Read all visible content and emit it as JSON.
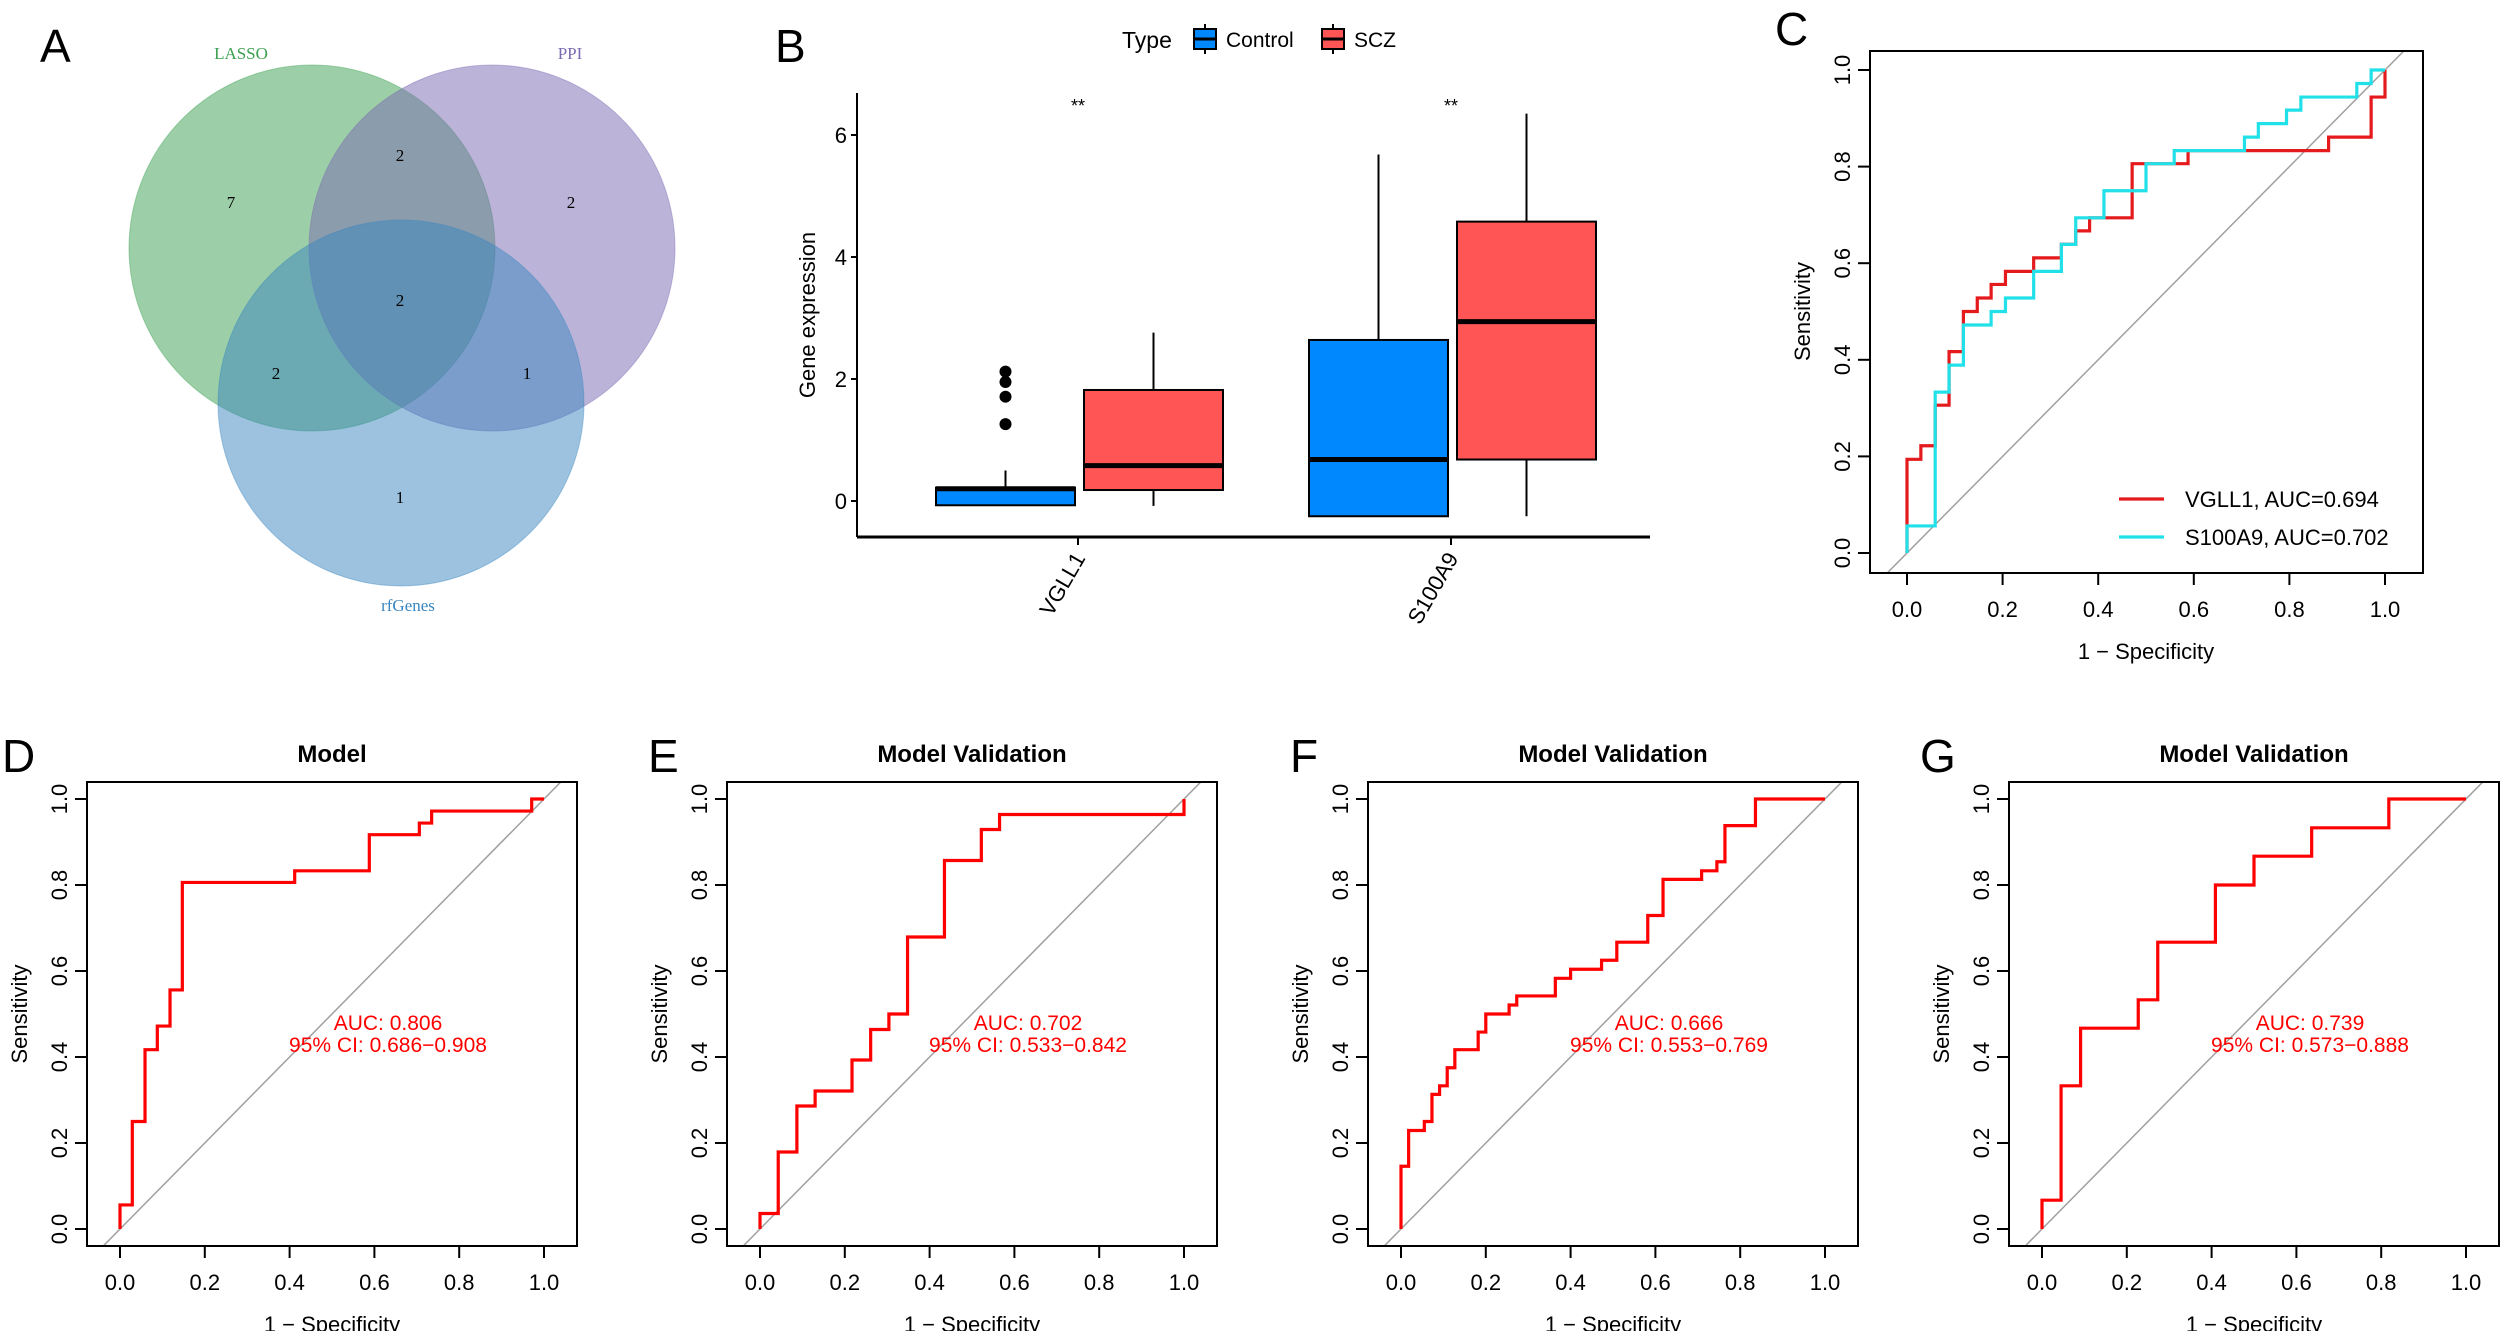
{
  "chart_data": [
    {
      "panel": "A",
      "type": "venn",
      "sets": [
        {
          "name": "LASSO",
          "color": "#3aa04f"
        },
        {
          "name": "PPI",
          "color": "#7a6ab2"
        },
        {
          "name": "rfGenes",
          "color": "#3a86c0"
        }
      ],
      "regions": {
        "LASSO_only": "7",
        "PPI_only": "2",
        "rfGenes_only": "1",
        "LASSO_PPI": "2",
        "LASSO_rfGenes": "2",
        "PPI_rfGenes": "1",
        "all": "2"
      }
    },
    {
      "panel": "B",
      "type": "box",
      "legend_title": "Type",
      "legend_position": "top",
      "groups": [
        {
          "name": "Control",
          "color": "#0088ff"
        },
        {
          "name": "SCZ",
          "color": "#ff5555"
        }
      ],
      "categories": [
        "VGLL1",
        "S100A9"
      ],
      "ylabel": "Gene expression",
      "yticks": [
        "0",
        "2",
        "4",
        "6"
      ],
      "significance": [
        "**",
        "**"
      ],
      "boxes": [
        {
          "category": "VGLL1",
          "group": "Control",
          "min": -0.07,
          "q1": -0.07,
          "median": 0.2,
          "q3": 0.22,
          "max": 0.5,
          "outliers": [
            1.26,
            1.71,
            1.95,
            2.12
          ]
        },
        {
          "category": "VGLL1",
          "group": "SCZ",
          "min": -0.08,
          "q1": 0.18,
          "median": 0.58,
          "q3": 1.82,
          "max": 2.76,
          "outliers": []
        },
        {
          "category": "S100A9",
          "group": "Control",
          "min": -0.25,
          "q1": -0.25,
          "median": 0.68,
          "q3": 2.64,
          "max": 5.68,
          "outliers": []
        },
        {
          "category": "S100A9",
          "group": "SCZ",
          "min": -0.25,
          "q1": 0.68,
          "median": 2.94,
          "q3": 4.58,
          "max": 6.35,
          "outliers": []
        }
      ]
    },
    {
      "panel": "C",
      "type": "line",
      "title": "",
      "xlabel": "1 − Specificity",
      "ylabel": "Sensitivity",
      "xlim": [
        0,
        1
      ],
      "ylim": [
        0,
        1
      ],
      "ticks": [
        "0.0",
        "0.2",
        "0.4",
        "0.6",
        "0.8",
        "1.0"
      ],
      "legend_position": "bottom-right",
      "series": [
        {
          "name": "VGLL1, AUC=0.694",
          "color": "#e41a1c",
          "step_x": [
            0,
            0.029,
            0.059,
            0.088,
            0.118,
            0.147,
            0.176,
            0.206,
            0.265,
            0.323,
            0.353,
            0.382,
            0.471,
            0.588,
            0.882,
            0.971,
            1.0
          ],
          "step_y": [
            0.194,
            0.222,
            0.306,
            0.417,
            0.5,
            0.528,
            0.556,
            0.583,
            0.611,
            0.639,
            0.667,
            0.694,
            0.806,
            0.833,
            0.861,
            0.944,
            1.0
          ]
        },
        {
          "name": "S100A9, AUC=0.702",
          "color": "#22e0e8",
          "step_x": [
            0,
            0.059,
            0.088,
            0.118,
            0.176,
            0.206,
            0.265,
            0.323,
            0.353,
            0.412,
            0.5,
            0.559,
            0.706,
            0.735,
            0.794,
            0.824,
            0.941,
            0.971
          ],
          "step_y": [
            0.056,
            0.333,
            0.389,
            0.472,
            0.5,
            0.528,
            0.583,
            0.639,
            0.694,
            0.75,
            0.806,
            0.833,
            0.861,
            0.889,
            0.917,
            0.944,
            0.972,
            1.0
          ]
        }
      ]
    },
    {
      "panel": "D",
      "type": "line",
      "title": "Model",
      "xlabel": "1 − Specificity",
      "ylabel": "Sensitivity",
      "xlim": [
        0,
        1
      ],
      "ylim": [
        0,
        1
      ],
      "ticks": [
        "0.0",
        "0.2",
        "0.4",
        "0.6",
        "0.8",
        "1.0"
      ],
      "auc_text": "AUC: 0.806",
      "ci_text": "95% CI: 0.686−0.908",
      "series": [
        {
          "color": "#ff0000",
          "step_x": [
            0,
            0.029,
            0.059,
            0.088,
            0.118,
            0.147,
            0.412,
            0.588,
            0.706,
            0.735,
            0.971
          ],
          "step_y": [
            0.056,
            0.25,
            0.417,
            0.472,
            0.556,
            0.806,
            0.833,
            0.917,
            0.944,
            0.972,
            1.0
          ]
        }
      ]
    },
    {
      "panel": "E",
      "type": "line",
      "title": "Model Validation",
      "xlabel": "1 − Specificity",
      "ylabel": "Sensitivity",
      "xlim": [
        0,
        1
      ],
      "ylim": [
        0,
        1
      ],
      "ticks": [
        "0.0",
        "0.2",
        "0.4",
        "0.6",
        "0.8",
        "1.0"
      ],
      "auc_text": "AUC: 0.702",
      "ci_text": "95% CI: 0.533−0.842",
      "series": [
        {
          "color": "#ff0000",
          "step_x": [
            0,
            0.043,
            0.087,
            0.13,
            0.217,
            0.261,
            0.304,
            0.348,
            0.435,
            0.522,
            0.565,
            1.0
          ],
          "step_y": [
            0.036,
            0.179,
            0.286,
            0.321,
            0.393,
            0.464,
            0.5,
            0.679,
            0.857,
            0.929,
            0.964,
            1.0
          ]
        }
      ]
    },
    {
      "panel": "F",
      "type": "line",
      "title": "Model Validation",
      "xlabel": "1 − Specificity",
      "ylabel": "Sensitivity",
      "xlim": [
        0,
        1
      ],
      "ylim": [
        0,
        1
      ],
      "ticks": [
        "0.0",
        "0.2",
        "0.4",
        "0.6",
        "0.8",
        "1.0"
      ],
      "auc_text": "AUC: 0.666",
      "ci_text": "95% CI: 0.553−0.769",
      "series": [
        {
          "color": "#ff0000",
          "step_x": [
            0,
            0.018,
            0.055,
            0.073,
            0.091,
            0.109,
            0.127,
            0.182,
            0.2,
            0.255,
            0.273,
            0.364,
            0.4,
            0.473,
            0.509,
            0.582,
            0.618,
            0.709,
            0.745,
            0.764,
            0.836
          ],
          "step_y": [
            0.146,
            0.229,
            0.25,
            0.313,
            0.333,
            0.375,
            0.417,
            0.458,
            0.5,
            0.521,
            0.542,
            0.583,
            0.604,
            0.625,
            0.667,
            0.729,
            0.813,
            0.833,
            0.854,
            0.938,
            1.0
          ]
        }
      ]
    },
    {
      "panel": "G",
      "type": "line",
      "title": "Model Validation",
      "xlabel": "1 − Specificity",
      "ylabel": "Sensitivity",
      "xlim": [
        0,
        1
      ],
      "ylim": [
        0,
        1
      ],
      "ticks": [
        "0.0",
        "0.2",
        "0.4",
        "0.6",
        "0.8",
        "1.0"
      ],
      "auc_text": "AUC: 0.739",
      "ci_text": "95% CI: 0.573−0.888",
      "series": [
        {
          "color": "#ff0000",
          "step_x": [
            0,
            0.045,
            0.091,
            0.227,
            0.273,
            0.409,
            0.5,
            0.636,
            0.818
          ],
          "step_y": [
            0.067,
            0.333,
            0.467,
            0.533,
            0.667,
            0.8,
            0.867,
            0.933,
            1.0
          ]
        }
      ]
    }
  ]
}
